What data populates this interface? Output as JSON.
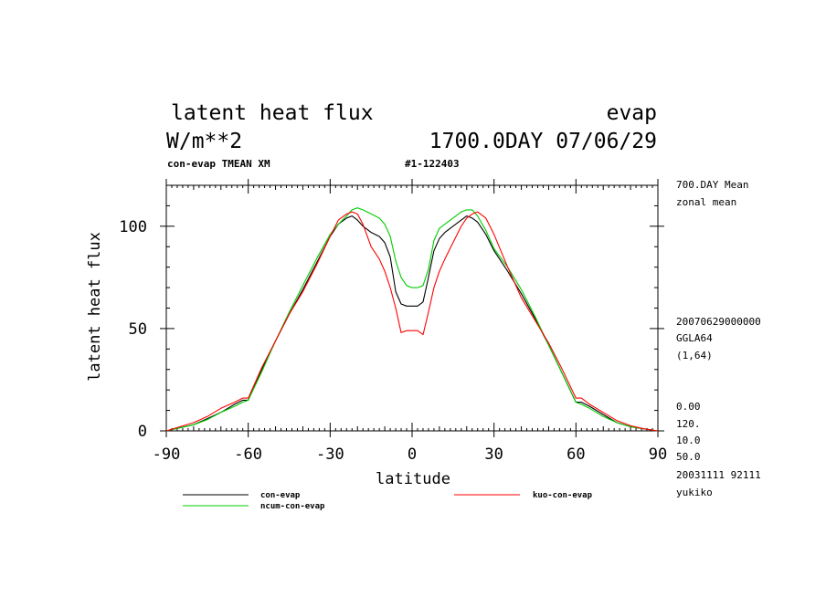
{
  "header": {
    "title": "latent heat flux",
    "var": "evap",
    "units": "W/m**2",
    "time": "1700.0DAY 07/06/29",
    "subtitle": "con-evap TMEAN XM",
    "run_id": "#1-122403"
  },
  "side_info": {
    "line1": "700.DAY Mean",
    "line2": "zonal mean",
    "line3": "20070629000000",
    "line4": "GGLA64",
    "line5": "(1,64)",
    "line6": "0.00",
    "line7": "120.",
    "line8": "10.0",
    "line9": "50.0",
    "line10": "20031111  92111",
    "line11": "yukiko"
  },
  "chart_data": {
    "type": "line",
    "title": "latent heat flux",
    "xlabel": "latitude",
    "ylabel": "latent heat flux",
    "xlim": [
      -90,
      90
    ],
    "ylim": [
      0,
      120
    ],
    "xticks": [
      "-90",
      "-60",
      "-30",
      "0",
      "30",
      "60",
      "90"
    ],
    "yticks": [
      "0",
      "50",
      "100"
    ],
    "grid": false,
    "series": [
      {
        "name": "con-evap",
        "color": "#000000",
        "x": [
          -90,
          -85,
          -80,
          -75,
          -70,
          -65,
          -62,
          -60,
          -55,
          -50,
          -45,
          -40,
          -35,
          -30,
          -27,
          -24,
          -22,
          -20,
          -18,
          -15,
          -12,
          -10,
          -8,
          -6,
          -4,
          -2,
          0,
          2,
          4,
          6,
          8,
          10,
          12,
          15,
          18,
          20,
          22,
          24,
          27,
          30,
          35,
          40,
          45,
          50,
          55,
          60,
          62,
          65,
          70,
          75,
          80,
          85,
          90
        ],
        "y": [
          0,
          1.5,
          3,
          6,
          9,
          13,
          15,
          15,
          30,
          44,
          57,
          69,
          82,
          95,
          101,
          104,
          105,
          103,
          100,
          97,
          95,
          92,
          85,
          68,
          62,
          61,
          61,
          61,
          63,
          75,
          88,
          94,
          97,
          100,
          103,
          105,
          104,
          102,
          96,
          88,
          78,
          67,
          55,
          42,
          28,
          14,
          14,
          12,
          8,
          4,
          2,
          1,
          0
        ]
      },
      {
        "name": "ncum-con-evap",
        "color": "#00cc00",
        "x": [
          -90,
          -85,
          -80,
          -75,
          -70,
          -65,
          -62,
          -60,
          -55,
          -50,
          -45,
          -40,
          -35,
          -30,
          -27,
          -24,
          -22,
          -20,
          -18,
          -15,
          -12,
          -10,
          -8,
          -6,
          -4,
          -2,
          0,
          2,
          4,
          6,
          8,
          10,
          12,
          15,
          18,
          20,
          22,
          24,
          27,
          30,
          35,
          40,
          45,
          50,
          55,
          60,
          62,
          65,
          70,
          75,
          80,
          85,
          90
        ],
        "y": [
          0,
          1.5,
          3,
          5.5,
          9,
          12,
          14,
          15,
          29,
          44,
          58,
          71,
          84,
          96,
          101,
          105,
          108,
          109,
          108,
          106,
          104,
          101,
          95,
          83,
          75,
          71,
          70,
          70,
          71,
          79,
          93,
          99,
          101,
          104,
          107,
          108,
          108,
          105,
          98,
          89,
          80,
          69,
          56,
          42,
          28,
          14,
          13,
          11,
          7,
          4,
          2,
          1,
          0
        ]
      },
      {
        "name": "kuo-con-evap",
        "color": "#ff0000",
        "x": [
          -90,
          -85,
          -80,
          -75,
          -70,
          -65,
          -62,
          -60,
          -55,
          -50,
          -45,
          -40,
          -35,
          -30,
          -27,
          -24,
          -22,
          -20,
          -18,
          -15,
          -12,
          -10,
          -8,
          -6,
          -4,
          -2,
          0,
          2,
          4,
          6,
          8,
          10,
          12,
          15,
          18,
          20,
          22,
          24,
          27,
          30,
          35,
          40,
          45,
          50,
          55,
          60,
          62,
          65,
          70,
          75,
          80,
          85,
          90
        ],
        "y": [
          0,
          2,
          4,
          7,
          11,
          14,
          16,
          16,
          31,
          44,
          57,
          68,
          81,
          95,
          103,
          106,
          107,
          106,
          101,
          90,
          84,
          78,
          70,
          60,
          48,
          49,
          49,
          49,
          47,
          58,
          70,
          78,
          84,
          92,
          100,
          104,
          106,
          107,
          104,
          96,
          80,
          65,
          54,
          43,
          30,
          16,
          16,
          13,
          9,
          5,
          2.5,
          1,
          0
        ]
      }
    ]
  }
}
